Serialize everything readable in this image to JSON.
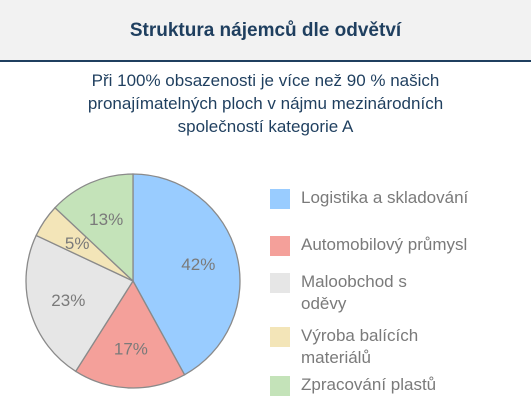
{
  "header": {
    "title": "Struktura nájemců dle odvětví"
  },
  "subtitle_lines": [
    "Při 100% obsazenosti je více než 90 % našich",
    "pronajímatelných ploch v nájmu mezinárodních",
    "společností kategorie A"
  ],
  "chart_data": {
    "type": "pie",
    "title": "Struktura nájemců dle odvětví",
    "slices": [
      {
        "label": "Logistika a skladování",
        "value": 42,
        "value_label": "42%",
        "color": "#99ccff"
      },
      {
        "label": "Automobilový průmysl",
        "value": 17,
        "value_label": "17%",
        "color": "#f4a09a"
      },
      {
        "label": "Maloobchod s oděvy",
        "value": 23,
        "value_label": "23%",
        "color": "#e6e6e6"
      },
      {
        "label": "Výroba balících materiálů",
        "value": 5,
        "value_label": "5%",
        "color": "#f3e5b8"
      },
      {
        "label": "Zpracování plastů",
        "value": 13,
        "value_label": "13%",
        "color": "#c4e3b9"
      }
    ],
    "start": "12 o'clock",
    "direction": "clockwise",
    "legend_position": "right"
  },
  "legend": {
    "items": [
      {
        "lines": [
          "Logistika a skladování"
        ],
        "color": "#99ccff"
      },
      {
        "lines": [
          "Automobilový průmysl"
        ],
        "color": "#f4a09a"
      },
      {
        "lines": [
          "Maloobchod s",
          "oděvy"
        ],
        "color": "#e6e6e6"
      },
      {
        "lines": [
          "Výroba balících",
          "materiálů"
        ],
        "color": "#f3e5b8"
      },
      {
        "lines": [
          "Zpracování plastů"
        ],
        "color": "#c4e3b9"
      }
    ]
  }
}
